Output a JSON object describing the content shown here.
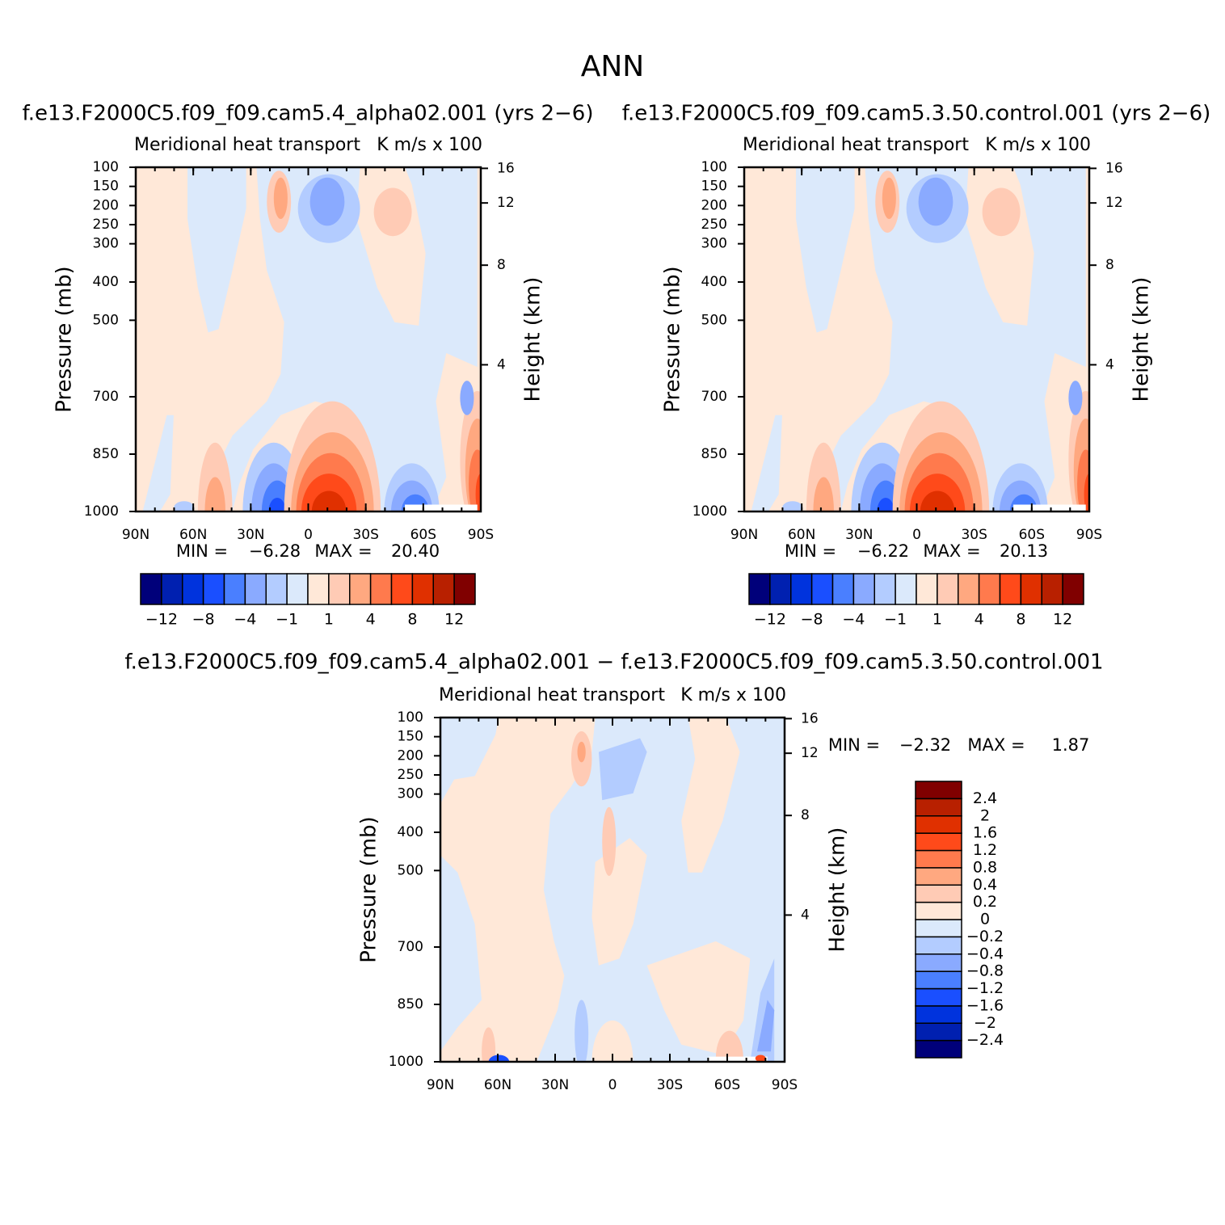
{
  "title": "ANN",
  "chart_data": [
    {
      "type": "contour",
      "title": "f.e13.F2000C5.f09_f09.cam5.4_alpha02.001 (yrs 2−6)",
      "left_title": "Meridional heat transport",
      "right_title": "K m/s x 100",
      "ylabel": "Pressure (mb)",
      "y2label": "Height (km)",
      "xlim": [
        90,
        -90
      ],
      "xticks": [
        {
          "value": 90,
          "label": "90N"
        },
        {
          "value": 60,
          "label": "60N"
        },
        {
          "value": 30,
          "label": "30N"
        },
        0,
        {
          "value": -30,
          "label": "30S"
        },
        {
          "value": -60,
          "label": "60S"
        },
        {
          "value": -90,
          "label": "90S"
        }
      ],
      "ylim": [
        100,
        1000
      ],
      "yticks": [
        100,
        150,
        200,
        250,
        300,
        400,
        500,
        700,
        850,
        1000
      ],
      "y2ticks": [
        4,
        8,
        12,
        16
      ],
      "stats": {
        "labels": [
          "MIN =",
          "MAX ="
        ],
        "values": [
          -6.28,
          20.4
        ],
        "value_labels": [
          "−6.28",
          "20.40"
        ]
      },
      "colorbar": {
        "orientation": "horizontal",
        "colors": [
          "#00007a",
          "#0020b0",
          "#0033dd",
          "#1a4fff",
          "#4a7fff",
          "#8aaaff",
          "#b3ccff",
          "#dbe9fb",
          "#ffe8d8",
          "#ffcbb5",
          "#ffa880",
          "#ff7a4d",
          "#ff4a1a",
          "#e03000",
          "#b82000",
          "#800000"
        ],
        "ticks": [
          {
            "value": -12,
            "label": "−12"
          },
          {
            "value": -8,
            "label": "−8"
          },
          {
            "value": -4,
            "label": "−4"
          },
          {
            "value": -1,
            "label": "−1"
          },
          1,
          4,
          8,
          12
        ]
      }
    },
    {
      "type": "contour",
      "title": "f.e13.F2000C5.f09_f09.cam5.3.50.control.001 (yrs 2−6)",
      "left_title": "Meridional heat transport",
      "right_title": "K m/s x 100",
      "ylabel": "Pressure (mb)",
      "y2label": "Height (km)",
      "xlim": [
        90,
        -90
      ],
      "xticks": [
        {
          "value": 90,
          "label": "90N"
        },
        {
          "value": 60,
          "label": "60N"
        },
        {
          "value": 30,
          "label": "30N"
        },
        0,
        {
          "value": -30,
          "label": "30S"
        },
        {
          "value": -60,
          "label": "60S"
        },
        {
          "value": -90,
          "label": "90S"
        }
      ],
      "ylim": [
        100,
        1000
      ],
      "yticks": [
        100,
        150,
        200,
        250,
        300,
        400,
        500,
        700,
        850,
        1000
      ],
      "y2ticks": [
        4,
        8,
        12,
        16
      ],
      "stats": {
        "labels": [
          "MIN =",
          "MAX ="
        ],
        "values": [
          -6.22,
          20.13
        ],
        "value_labels": [
          "−6.22",
          "20.13"
        ]
      },
      "colorbar": {
        "orientation": "horizontal",
        "colors": [
          "#00007a",
          "#0020b0",
          "#0033dd",
          "#1a4fff",
          "#4a7fff",
          "#8aaaff",
          "#b3ccff",
          "#dbe9fb",
          "#ffe8d8",
          "#ffcbb5",
          "#ffa880",
          "#ff7a4d",
          "#ff4a1a",
          "#e03000",
          "#b82000",
          "#800000"
        ],
        "ticks": [
          {
            "value": -12,
            "label": "−12"
          },
          {
            "value": -8,
            "label": "−8"
          },
          {
            "value": -4,
            "label": "−4"
          },
          {
            "value": -1,
            "label": "−1"
          },
          1,
          4,
          8,
          12
        ]
      }
    },
    {
      "type": "contour",
      "title": "f.e13.F2000C5.f09_f09.cam5.4_alpha02.001 − f.e13.F2000C5.f09_f09.cam5.3.50.control.001",
      "left_title": "Meridional heat transport",
      "right_title": "K m/s x 100",
      "ylabel": "Pressure (mb)",
      "y2label": "Height (km)",
      "xlim": [
        90,
        -90
      ],
      "xticks": [
        {
          "value": 90,
          "label": "90N"
        },
        {
          "value": 60,
          "label": "60N"
        },
        {
          "value": 30,
          "label": "30N"
        },
        0,
        {
          "value": -30,
          "label": "30S"
        },
        {
          "value": -60,
          "label": "60S"
        },
        {
          "value": -90,
          "label": "90S"
        }
      ],
      "ylim": [
        100,
        1000
      ],
      "yticks": [
        100,
        150,
        200,
        250,
        300,
        400,
        500,
        700,
        850,
        1000
      ],
      "y2ticks": [
        4,
        8,
        12,
        16
      ],
      "stats": {
        "labels": [
          "MIN =",
          "MAX ="
        ],
        "values": [
          -2.32,
          1.87
        ],
        "value_labels": [
          "−2.32",
          "1.87"
        ]
      },
      "colorbar": {
        "orientation": "vertical",
        "colors": [
          "#00007a",
          "#0020b0",
          "#0033dd",
          "#1a4fff",
          "#4a7fff",
          "#8aaaff",
          "#b3ccff",
          "#dbe9fb",
          "#ffe8d8",
          "#ffcbb5",
          "#ffa880",
          "#ff7a4d",
          "#ff4a1a",
          "#e03000",
          "#b82000",
          "#800000"
        ],
        "ticks": [
          {
            "value": -2.4,
            "label": "−2.4"
          },
          {
            "value": -2,
            "label": "−2"
          },
          {
            "value": -1.6,
            "label": "−1.6"
          },
          {
            "value": -1.2,
            "label": "−1.2"
          },
          {
            "value": -0.8,
            "label": "−0.8"
          },
          {
            "value": -0.4,
            "label": "−0.4"
          },
          {
            "value": -0.2,
            "label": "−0.2"
          },
          0,
          0.2,
          0.4,
          0.8,
          1.2,
          1.6,
          2,
          2.4
        ]
      }
    }
  ]
}
